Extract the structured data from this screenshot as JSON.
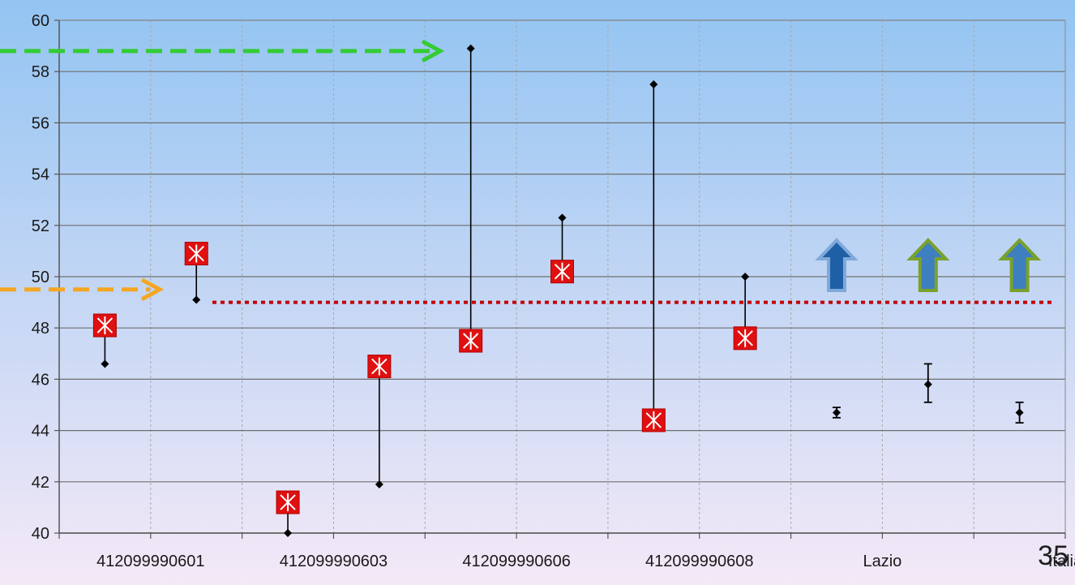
{
  "slide": {
    "page_number": "35"
  },
  "chart_data": {
    "type": "scatter",
    "title": "",
    "xlabel": "",
    "ylabel": "",
    "ylim": [
      40,
      60
    ],
    "y_ticks": [
      40,
      42,
      44,
      46,
      48,
      50,
      52,
      54,
      56,
      58,
      60
    ],
    "grid": {
      "horizontal": true,
      "vertical": true,
      "vertical_style": "dotted"
    },
    "categories": [
      "",
      "412099990601",
      "",
      "412099990603",
      "",
      "412099990606",
      "",
      "412099990608",
      "",
      "Lazio",
      "",
      "Italia"
    ],
    "series": [
      {
        "marker": "red-square-x",
        "color": "#e01010",
        "values": [
          48.1,
          50.9,
          41.2,
          46.5,
          47.5,
          50.2,
          44.4,
          47.6,
          null,
          null,
          null
        ]
      },
      {
        "marker": "black-diamond",
        "color": "#000000",
        "values": [
          46.6,
          49.1,
          40.0,
          41.9,
          58.9,
          52.3,
          57.5,
          50.0,
          44.7,
          45.8,
          44.7
        ]
      }
    ],
    "error_bars": [
      {
        "index": 8,
        "low": 44.5,
        "high": 44.9
      },
      {
        "index": 9,
        "low": 45.1,
        "high": 46.6
      },
      {
        "index": 10,
        "low": 44.3,
        "high": 45.1
      }
    ],
    "arrows_up": [
      {
        "index": 8,
        "color": "#1f5fa6",
        "outline": "#7fa9d9"
      },
      {
        "index": 9,
        "color": "#3e7fc0",
        "outline": "#7aa12b"
      },
      {
        "index": 10,
        "color": "#3e7fc0",
        "outline": "#7aa12b"
      }
    ],
    "reference_line": {
      "y": 49,
      "color": "#c00000",
      "style": "dotted"
    },
    "pointer_arrows": [
      {
        "y": 58.8,
        "color": "#33cc33",
        "style": "dashed"
      },
      {
        "y": 49.5,
        "color": "#f5a623",
        "style": "dashed"
      }
    ],
    "background": {
      "top": "#93c4f2",
      "bottom": "#f4e9f7"
    }
  }
}
